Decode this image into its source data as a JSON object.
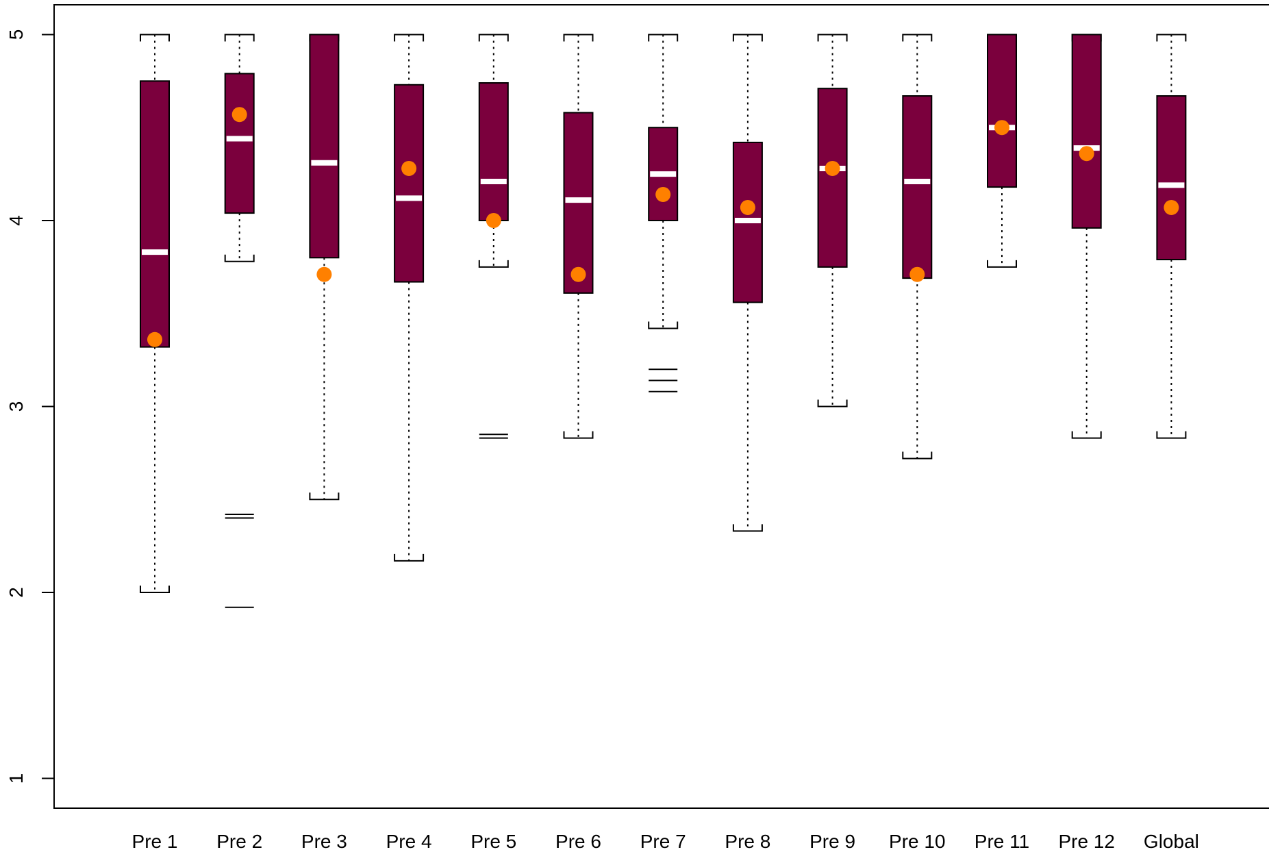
{
  "chart_data": {
    "type": "boxplot",
    "categories": [
      "Pre 1",
      "Pre 2",
      "Pre 3",
      "Pre 4",
      "Pre 5",
      "Pre 6",
      "Pre 7",
      "Pre 8",
      "Pre 9",
      "Pre 10",
      "Pre 11",
      "Pre 12",
      "Global"
    ],
    "ylim": [
      0.84,
      5.16
    ],
    "yticks": [
      "1",
      "2",
      "3",
      "4",
      "5"
    ],
    "grid": false,
    "legend": "none",
    "colors": {
      "box": "#7b003d",
      "median": "#ffffff",
      "mean": "#ff8000",
      "line": "#000000"
    },
    "boxes": [
      {
        "min": 2.0,
        "q1": 3.32,
        "median": 3.83,
        "q3": 4.75,
        "max": 5.0,
        "mean": 3.36,
        "outliers": []
      },
      {
        "min": 3.78,
        "q1": 4.04,
        "median": 4.44,
        "q3": 4.79,
        "max": 5.0,
        "mean": 4.57,
        "outliers": [
          2.42,
          2.4,
          1.92
        ]
      },
      {
        "min": 2.5,
        "q1": 3.8,
        "median": 4.31,
        "q3": 5.0,
        "max": 5.0,
        "mean": 3.71,
        "outliers": []
      },
      {
        "min": 2.17,
        "q1": 3.67,
        "median": 4.12,
        "q3": 4.73,
        "max": 5.0,
        "mean": 4.28,
        "outliers": []
      },
      {
        "min": 3.75,
        "q1": 4.0,
        "median": 4.21,
        "q3": 4.74,
        "max": 5.0,
        "mean": 4.0,
        "outliers": [
          2.85,
          2.83
        ]
      },
      {
        "min": 2.83,
        "q1": 3.61,
        "median": 4.11,
        "q3": 4.58,
        "max": 5.0,
        "mean": 3.71,
        "outliers": []
      },
      {
        "min": 3.42,
        "q1": 4.0,
        "median": 4.25,
        "q3": 4.5,
        "max": 5.0,
        "mean": 4.14,
        "outliers": [
          3.2,
          3.14,
          3.08
        ]
      },
      {
        "min": 2.33,
        "q1": 3.56,
        "median": 4.0,
        "q3": 4.42,
        "max": 5.0,
        "mean": 4.07,
        "outliers": []
      },
      {
        "min": 3.0,
        "q1": 3.75,
        "median": 4.28,
        "q3": 4.71,
        "max": 5.0,
        "mean": 4.28,
        "outliers": []
      },
      {
        "min": 2.72,
        "q1": 3.69,
        "median": 4.21,
        "q3": 4.67,
        "max": 5.0,
        "mean": 3.71,
        "outliers": []
      },
      {
        "min": 3.75,
        "q1": 4.18,
        "median": 4.5,
        "q3": 5.0,
        "max": 5.0,
        "mean": 4.5,
        "outliers": []
      },
      {
        "min": 2.83,
        "q1": 3.96,
        "median": 4.39,
        "q3": 5.0,
        "max": 5.0,
        "mean": 4.36,
        "outliers": []
      },
      {
        "min": 2.83,
        "q1": 3.79,
        "median": 4.19,
        "q3": 4.67,
        "max": 5.0,
        "mean": 4.07,
        "outliers": []
      }
    ]
  }
}
